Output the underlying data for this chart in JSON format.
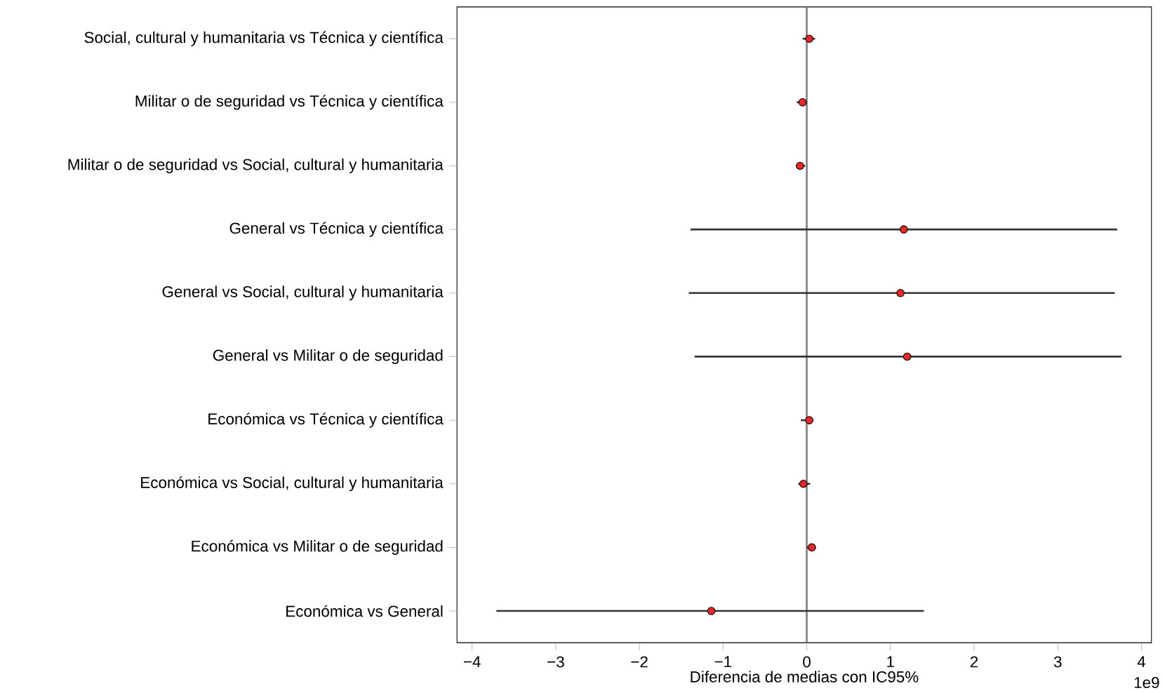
{
  "chart_data": {
    "type": "scatter",
    "orientation": "horizontal",
    "marker": "circle",
    "color": "#e8282a",
    "categories": [
      "Social, cultural y humanitaria vs Técnica y científica",
      "Militar o de seguridad vs Técnica y científica",
      "Militar o de seguridad vs Social, cultural y humanitaria",
      "General vs Técnica y científica",
      "General vs Social, cultural y humanitaria",
      "General vs Militar o de seguridad",
      "Económica vs Técnica y científica",
      "Económica vs Social, cultural y humanitaria",
      "Económica vs Militar o de seguridad",
      "Económica vs General"
    ],
    "values": [
      0.03,
      -0.05,
      -0.08,
      1.16,
      1.12,
      1.2,
      0.03,
      -0.04,
      0.06,
      -1.14
    ],
    "errors": [
      [
        -0.05,
        0.1
      ],
      [
        -0.12,
        0.0
      ],
      [
        -0.13,
        -0.02
      ],
      [
        -1.39,
        3.71
      ],
      [
        -1.41,
        3.68
      ],
      [
        -1.34,
        3.76
      ],
      [
        -0.07,
        0.08
      ],
      [
        -0.1,
        0.04
      ],
      [
        0.0,
        0.11
      ],
      [
        -3.71,
        1.4
      ]
    ],
    "xlim": [
      -4.18,
      4.12
    ],
    "xticks": [
      {
        "value": -4,
        "label": "−4"
      },
      {
        "value": -3,
        "label": "−3"
      },
      {
        "value": -2,
        "label": "−2"
      },
      {
        "value": -1,
        "label": "−1"
      },
      0,
      1,
      2,
      3,
      4
    ],
    "xlabel": "Diferencia de medias con IC95%",
    "annotations": [
      "1e9"
    ],
    "ref_lines": [
      {
        "axis": "x",
        "value": 0,
        "color": "#808080"
      }
    ]
  }
}
